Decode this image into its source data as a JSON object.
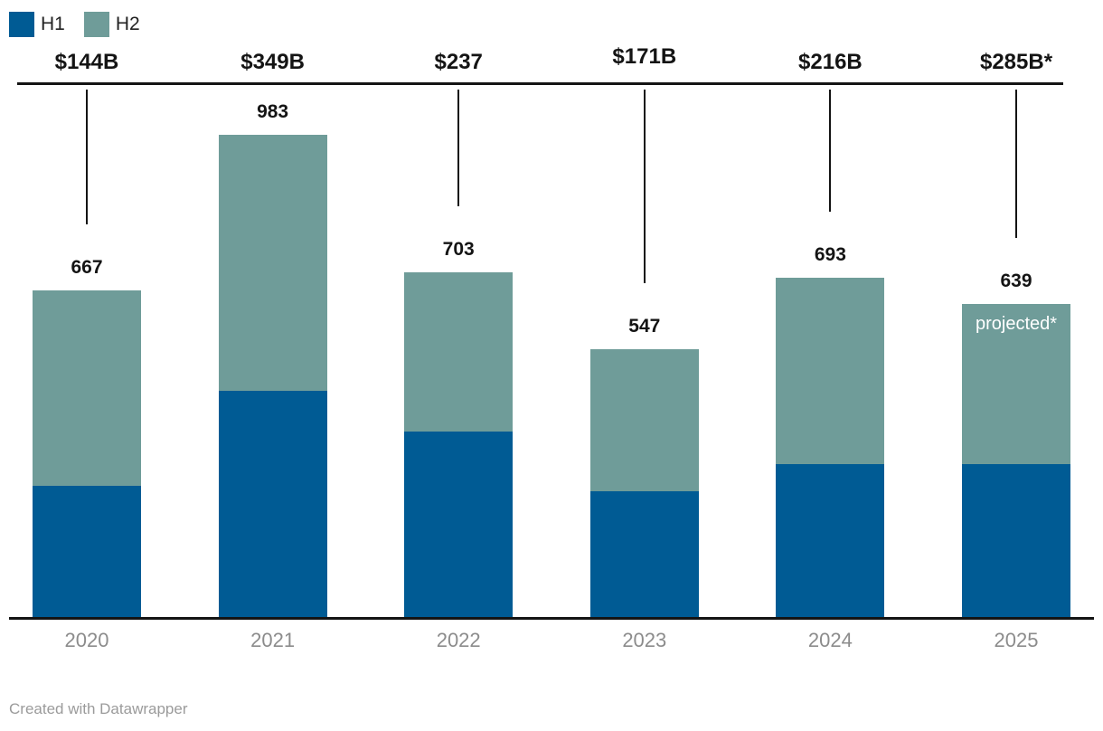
{
  "chart": {
    "footer_credit": "Created with Datawrapper"
  },
  "chart_data": {
    "type": "bar",
    "stacked": true,
    "title": "",
    "xlabel": "",
    "ylabel": "",
    "grid": false,
    "legend_position": "top-left",
    "ylim": [
      0,
      1090
    ],
    "categories": [
      "2020",
      "2021",
      "2022",
      "2023",
      "2024",
      "2025"
    ],
    "series": [
      {
        "name": "H1",
        "color": "#005b94",
        "values": [
          269,
          462,
          379,
          258,
          313,
          313
        ]
      },
      {
        "name": "H2",
        "color": "#6f9c99",
        "values": [
          398,
          521,
          324,
          289,
          380,
          326
        ]
      }
    ],
    "totals": [
      667,
      983,
      703,
      547,
      693,
      639
    ],
    "annotations": [
      {
        "text": "$144B",
        "dy": 0
      },
      {
        "text": "$349B",
        "dy": 0
      },
      {
        "text": "$237",
        "dy": 0
      },
      {
        "text": "$171B",
        "dy": -6
      },
      {
        "text": "$216B",
        "dy": 0
      },
      {
        "text": "$285B*",
        "dy": 0
      }
    ],
    "bar_notes": [
      {
        "category": "2025",
        "text": "projected*",
        "color": "#ffffff"
      }
    ]
  }
}
